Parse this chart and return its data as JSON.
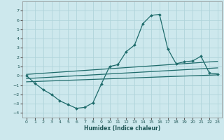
{
  "xlabel": "Humidex (Indice chaleur)",
  "bg_color": "#cde8ed",
  "grid_color": "#b0d4da",
  "line_color": "#1e6b6b",
  "xlim": [
    -0.5,
    23.5
  ],
  "ylim": [
    -4.5,
    8.0
  ],
  "xticks": [
    0,
    1,
    2,
    3,
    4,
    5,
    6,
    7,
    8,
    9,
    10,
    11,
    12,
    13,
    14,
    15,
    16,
    17,
    18,
    19,
    20,
    21,
    22,
    23
  ],
  "yticks": [
    -4,
    -3,
    -2,
    -1,
    0,
    1,
    2,
    3,
    4,
    5,
    6,
    7
  ],
  "main_curve_x": [
    0,
    1,
    2,
    3,
    4,
    5,
    6,
    7,
    8,
    9,
    10,
    11,
    12,
    13,
    14,
    15,
    16,
    17,
    18,
    19,
    20,
    21,
    22,
    23
  ],
  "main_curve_y": [
    0.0,
    -0.8,
    -1.5,
    -2.0,
    -2.7,
    -3.1,
    -3.5,
    -3.4,
    -2.9,
    -0.9,
    1.0,
    1.2,
    2.6,
    3.3,
    5.6,
    6.5,
    6.6,
    2.9,
    1.3,
    1.5,
    1.6,
    2.1,
    0.3,
    0.2
  ],
  "trend1_x": [
    0,
    23
  ],
  "trend1_y": [
    0.15,
    1.55
  ],
  "trend2_x": [
    0,
    23
  ],
  "trend2_y": [
    -0.3,
    0.85
  ],
  "trend3_x": [
    0,
    23
  ],
  "trend3_y": [
    -0.65,
    0.1
  ]
}
